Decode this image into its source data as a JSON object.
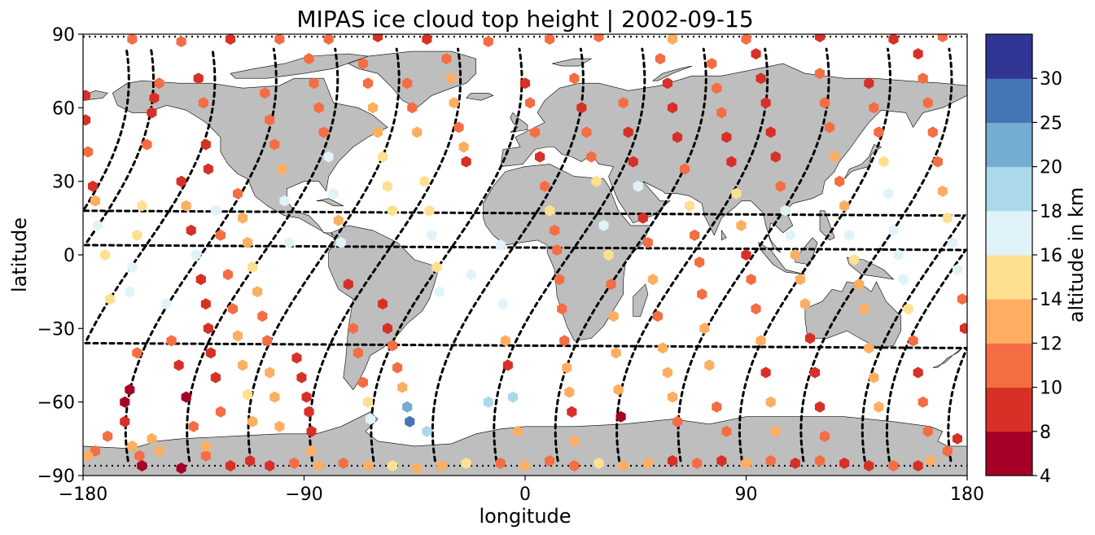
{
  "chart_data": {
    "type": "scatter",
    "title": "MIPAS ice cloud top height | 2002-09-15",
    "xlabel": "longitude",
    "ylabel": "latitude",
    "xlim": [
      -180,
      180
    ],
    "ylim": [
      -90,
      90
    ],
    "xticks": [
      -180,
      -90,
      0,
      90,
      180
    ],
    "yticks": [
      -90,
      -60,
      -30,
      0,
      30,
      60,
      90
    ],
    "xtick_labels": [
      "−180",
      "−90",
      "0",
      "90",
      "180"
    ],
    "ytick_labels": [
      "−90",
      "−60",
      "−30",
      "0",
      "30",
      "60",
      "90"
    ],
    "grid": false,
    "colorbar": {
      "label": "altitude in km",
      "levels": [
        4,
        8,
        10,
        12,
        14,
        16,
        18,
        20,
        25,
        30
      ],
      "tick_labels": [
        "4",
        "8",
        "10",
        "12",
        "14",
        "16",
        "18",
        "20",
        "25",
        "30"
      ],
      "colors": [
        "#a50026",
        "#d73027",
        "#f46d43",
        "#fdae61",
        "#fee090",
        "#e0f3f8",
        "#abd9e9",
        "#74add1",
        "#4575b4",
        "#313695"
      ]
    },
    "colors": {
      "land": "#bebebe",
      "coast": "#000000",
      "track": "#000000",
      "background": "#ffffff"
    },
    "ice_cloud_points": [
      [
        -179,
        65,
        8
      ],
      [
        -179,
        55,
        8
      ],
      [
        -178,
        42,
        10
      ],
      [
        -176,
        28,
        8
      ],
      [
        -175,
        22,
        12
      ],
      [
        -174,
        12,
        16
      ],
      [
        -171,
        0,
        14
      ],
      [
        -169,
        -18,
        14
      ],
      [
        -163,
        -60,
        4
      ],
      [
        -160,
        -78,
        12
      ],
      [
        -157,
        -82,
        10
      ],
      [
        -156,
        -86,
        4
      ],
      [
        -158,
        -40,
        10
      ],
      [
        -161,
        -55,
        4
      ],
      [
        -163,
        -68,
        8
      ],
      [
        -152,
        -75,
        12
      ],
      [
        -149,
        -80,
        12
      ],
      [
        -140,
        -87,
        4
      ],
      [
        -130,
        -82,
        10
      ],
      [
        -120,
        -86,
        8
      ],
      [
        -112,
        -84,
        8
      ],
      [
        -104,
        -86,
        8
      ],
      [
        -94,
        -85,
        10
      ],
      [
        -84,
        -86,
        12
      ],
      [
        -74,
        -85,
        10
      ],
      [
        -64,
        -86,
        12
      ],
      [
        -54,
        -86,
        14
      ],
      [
        -44,
        -87,
        12
      ],
      [
        -34,
        -86,
        12
      ],
      [
        -24,
        -85,
        14
      ],
      [
        -160,
        -5,
        16
      ],
      [
        -161,
        -15,
        16
      ],
      [
        -158,
        8,
        14
      ],
      [
        -156,
        20,
        14
      ],
      [
        -154,
        45,
        10
      ],
      [
        -152,
        58,
        8
      ],
      [
        -151,
        64,
        8
      ],
      [
        -149,
        70,
        10
      ],
      [
        -146,
        -20,
        16
      ],
      [
        -144,
        -35,
        10
      ],
      [
        -141,
        -45,
        8
      ],
      [
        -138,
        -58,
        4
      ],
      [
        -135,
        -70,
        10
      ],
      [
        -130,
        -78,
        12
      ],
      [
        -140,
        30,
        8
      ],
      [
        -138,
        20,
        12
      ],
      [
        -136,
        10,
        8
      ],
      [
        -134,
        0,
        16
      ],
      [
        -132,
        -10,
        8
      ],
      [
        -130,
        -20,
        8
      ],
      [
        -129,
        -30,
        8
      ],
      [
        -128,
        -40,
        8
      ],
      [
        -126,
        -50,
        8
      ],
      [
        -124,
        -64,
        10
      ],
      [
        -133,
        72,
        8
      ],
      [
        -131,
        62,
        10
      ],
      [
        -130,
        45,
        8
      ],
      [
        -129,
        35,
        8
      ],
      [
        -126,
        18,
        16
      ],
      [
        -124,
        8,
        10
      ],
      [
        -121,
        -8,
        10
      ],
      [
        -119,
        -22,
        10
      ],
      [
        -117,
        -33,
        12
      ],
      [
        -115,
        -45,
        12
      ],
      [
        -113,
        -57,
        14
      ],
      [
        -111,
        -68,
        12
      ],
      [
        -117,
        25,
        10
      ],
      [
        -115,
        15,
        12
      ],
      [
        -113,
        5,
        12
      ],
      [
        -111,
        -5,
        14
      ],
      [
        -109,
        -15,
        12
      ],
      [
        -107,
        -25,
        10
      ],
      [
        -105,
        -35,
        10
      ],
      [
        -104,
        -48,
        12
      ],
      [
        -102,
        -58,
        12
      ],
      [
        -100,
        -70,
        12
      ],
      [
        -106,
        66,
        10
      ],
      [
        -104,
        55,
        10
      ],
      [
        -102,
        45,
        10
      ],
      [
        -99,
        35,
        12
      ],
      [
        -98,
        22,
        16
      ],
      [
        -96,
        5,
        16
      ],
      [
        -93,
        -42,
        8
      ],
      [
        -91,
        -50,
        8
      ],
      [
        -89,
        -58,
        8
      ],
      [
        -88,
        -64,
        8
      ],
      [
        -87,
        -72,
        8
      ],
      [
        -87,
        -80,
        12
      ],
      [
        -88,
        80,
        10
      ],
      [
        -86,
        70,
        10
      ],
      [
        -84,
        60,
        10
      ],
      [
        -82,
        50,
        10
      ],
      [
        -80,
        40,
        16
      ],
      [
        -78,
        25,
        16
      ],
      [
        -76,
        14,
        12
      ],
      [
        -75,
        5,
        16
      ],
      [
        -72,
        -12,
        8
      ],
      [
        -70,
        -30,
        10
      ],
      [
        -68,
        -40,
        10
      ],
      [
        -66,
        -52,
        10
      ],
      [
        -64,
        -60,
        14
      ],
      [
        -63,
        -67,
        16
      ],
      [
        -66,
        78,
        10
      ],
      [
        -64,
        70,
        10
      ],
      [
        -62,
        60,
        12
      ],
      [
        -60,
        50,
        12
      ],
      [
        -58,
        40,
        14
      ],
      [
        -56,
        28,
        14
      ],
      [
        -54,
        18,
        14
      ],
      [
        -58,
        -20,
        8
      ],
      [
        -56,
        -30,
        8
      ],
      [
        -54,
        -37,
        10
      ],
      [
        -52,
        -46,
        10
      ],
      [
        -50,
        -54,
        12
      ],
      [
        -48,
        -62,
        20
      ],
      [
        -47,
        -68,
        25
      ],
      [
        -40,
        -72,
        18
      ],
      [
        -48,
        70,
        10
      ],
      [
        -46,
        60,
        10
      ],
      [
        -44,
        50,
        12
      ],
      [
        -41,
        30,
        14
      ],
      [
        -39,
        18,
        14
      ],
      [
        -38,
        8,
        16
      ],
      [
        -36,
        -5,
        14
      ],
      [
        -35,
        -15,
        16
      ],
      [
        -32,
        80,
        10
      ],
      [
        -30,
        72,
        12
      ],
      [
        -29,
        62,
        12
      ],
      [
        -27,
        52,
        10
      ],
      [
        -25,
        44,
        12
      ],
      [
        -24,
        38,
        8
      ],
      [
        -22,
        -8,
        16
      ],
      [
        -15,
        -60,
        18
      ],
      [
        -10,
        4,
        16
      ],
      [
        -9,
        -20,
        16
      ],
      [
        -8,
        -35,
        12
      ],
      [
        -7,
        -45,
        8
      ],
      [
        -5,
        -58,
        18
      ],
      [
        -3,
        -72,
        12
      ],
      [
        0,
        70,
        8
      ],
      [
        2,
        62,
        10
      ],
      [
        4,
        50,
        10
      ],
      [
        6,
        40,
        8
      ],
      [
        8,
        28,
        10
      ],
      [
        10,
        18,
        14
      ],
      [
        12,
        10,
        10
      ],
      [
        13,
        2,
        10
      ],
      [
        14,
        -10,
        10
      ],
      [
        15,
        -22,
        10
      ],
      [
        16,
        -35,
        10
      ],
      [
        17,
        -46,
        12
      ],
      [
        18,
        -56,
        12
      ],
      [
        19,
        -64,
        8
      ],
      [
        20,
        -76,
        12
      ],
      [
        20,
        72,
        10
      ],
      [
        23,
        60,
        8
      ],
      [
        25,
        50,
        10
      ],
      [
        27,
        40,
        10
      ],
      [
        29,
        30,
        14
      ],
      [
        32,
        12,
        16
      ],
      [
        34,
        0,
        14
      ],
      [
        35,
        -12,
        10
      ],
      [
        36,
        -25,
        12
      ],
      [
        37,
        -40,
        12
      ],
      [
        38,
        -55,
        12
      ],
      [
        39,
        -66,
        4
      ],
      [
        40,
        62,
        10
      ],
      [
        42,
        50,
        8
      ],
      [
        44,
        38,
        8
      ],
      [
        46,
        28,
        16
      ],
      [
        48,
        15,
        8
      ],
      [
        50,
        5,
        10
      ],
      [
        52,
        -10,
        12
      ],
      [
        54,
        -25,
        10
      ],
      [
        56,
        -38,
        12
      ],
      [
        58,
        -48,
        12
      ],
      [
        60,
        -58,
        12
      ],
      [
        62,
        -68,
        10
      ],
      [
        55,
        80,
        10
      ],
      [
        58,
        70,
        8
      ],
      [
        60,
        60,
        8
      ],
      [
        62,
        48,
        8
      ],
      [
        65,
        35,
        10
      ],
      [
        67,
        20,
        14
      ],
      [
        69,
        8,
        10
      ],
      [
        71,
        -3,
        10
      ],
      [
        72,
        -16,
        10
      ],
      [
        73,
        -30,
        12
      ],
      [
        75,
        -45,
        12
      ],
      [
        78,
        -62,
        10
      ],
      [
        82,
        -72,
        10
      ],
      [
        76,
        78,
        10
      ],
      [
        78,
        68,
        10
      ],
      [
        80,
        58,
        10
      ],
      [
        82,
        48,
        8
      ],
      [
        84,
        38,
        8
      ],
      [
        86,
        25,
        14
      ],
      [
        88,
        12,
        12
      ],
      [
        90,
        0,
        8
      ],
      [
        92,
        -10,
        10
      ],
      [
        94,
        -22,
        10
      ],
      [
        96,
        -35,
        12
      ],
      [
        98,
        -48,
        8
      ],
      [
        100,
        -60,
        12
      ],
      [
        102,
        -72,
        12
      ],
      [
        94,
        82,
        8
      ],
      [
        96,
        72,
        8
      ],
      [
        98,
        62,
        8
      ],
      [
        100,
        50,
        8
      ],
      [
        102,
        40,
        8
      ],
      [
        104,
        28,
        10
      ],
      [
        106,
        18,
        16
      ],
      [
        108,
        8,
        16
      ],
      [
        110,
        0,
        12
      ],
      [
        112,
        -10,
        12
      ],
      [
        114,
        -20,
        12
      ],
      [
        116,
        -34,
        8
      ],
      [
        118,
        -48,
        8
      ],
      [
        120,
        -62,
        8
      ],
      [
        122,
        -74,
        10
      ],
      [
        120,
        74,
        10
      ],
      [
        122,
        62,
        10
      ],
      [
        124,
        52,
        10
      ],
      [
        126,
        40,
        12
      ],
      [
        128,
        30,
        10
      ],
      [
        130,
        20,
        12
      ],
      [
        132,
        8,
        16
      ],
      [
        134,
        -2,
        14
      ],
      [
        136,
        -12,
        12
      ],
      [
        138,
        -22,
        12
      ],
      [
        140,
        -38,
        12
      ],
      [
        142,
        -50,
        12
      ],
      [
        144,
        -62,
        12
      ],
      [
        140,
        70,
        8
      ],
      [
        142,
        60,
        10
      ],
      [
        144,
        50,
        10
      ],
      [
        146,
        38,
        14
      ],
      [
        148,
        25,
        16
      ],
      [
        150,
        10,
        16
      ],
      [
        152,
        0,
        16
      ],
      [
        154,
        -10,
        16
      ],
      [
        156,
        -22,
        14
      ],
      [
        158,
        -35,
        10
      ],
      [
        160,
        -48,
        8
      ],
      [
        162,
        -60,
        10
      ],
      [
        164,
        -72,
        10
      ],
      [
        160,
        82,
        8
      ],
      [
        162,
        72,
        10
      ],
      [
        164,
        62,
        10
      ],
      [
        166,
        50,
        10
      ],
      [
        168,
        38,
        10
      ],
      [
        170,
        26,
        12
      ],
      [
        172,
        15,
        14
      ],
      [
        174,
        5,
        16
      ],
      [
        176,
        -6,
        16
      ],
      [
        178,
        -18,
        10
      ],
      [
        179,
        -30,
        8
      ],
      [
        -170,
        -74,
        10
      ],
      [
        -175,
        -80,
        10
      ],
      [
        -178,
        -82,
        12
      ],
      [
        176,
        -75,
        8
      ],
      [
        172,
        -80,
        10
      ],
      [
        165,
        -84,
        12
      ],
      [
        160,
        -86,
        8
      ],
      [
        150,
        -86,
        10
      ],
      [
        140,
        -86,
        8
      ],
      [
        130,
        -85,
        8
      ],
      [
        120,
        -84,
        10
      ],
      [
        110,
        -85,
        8
      ],
      [
        100,
        -84,
        10
      ],
      [
        90,
        -85,
        12
      ],
      [
        80,
        -84,
        8
      ],
      [
        70,
        -85,
        10
      ],
      [
        60,
        -84,
        8
      ],
      [
        50,
        -85,
        12
      ],
      [
        40,
        -86,
        12
      ],
      [
        30,
        -85,
        14
      ],
      [
        20,
        -86,
        10
      ],
      [
        10,
        -84,
        10
      ],
      [
        0,
        -86,
        12
      ],
      [
        -10,
        -85,
        10
      ],
      [
        -15,
        87,
        10
      ],
      [
        -40,
        88,
        8
      ],
      [
        -60,
        89,
        8
      ],
      [
        -80,
        88,
        10
      ],
      [
        -100,
        88,
        10
      ],
      [
        -120,
        88,
        8
      ],
      [
        -140,
        87,
        10
      ],
      [
        -160,
        88,
        10
      ],
      [
        10,
        88,
        10
      ],
      [
        30,
        89,
        10
      ],
      [
        60,
        88,
        12
      ],
      [
        90,
        88,
        10
      ],
      [
        120,
        89,
        8
      ],
      [
        150,
        88,
        8
      ],
      [
        170,
        89,
        10
      ]
    ]
  }
}
